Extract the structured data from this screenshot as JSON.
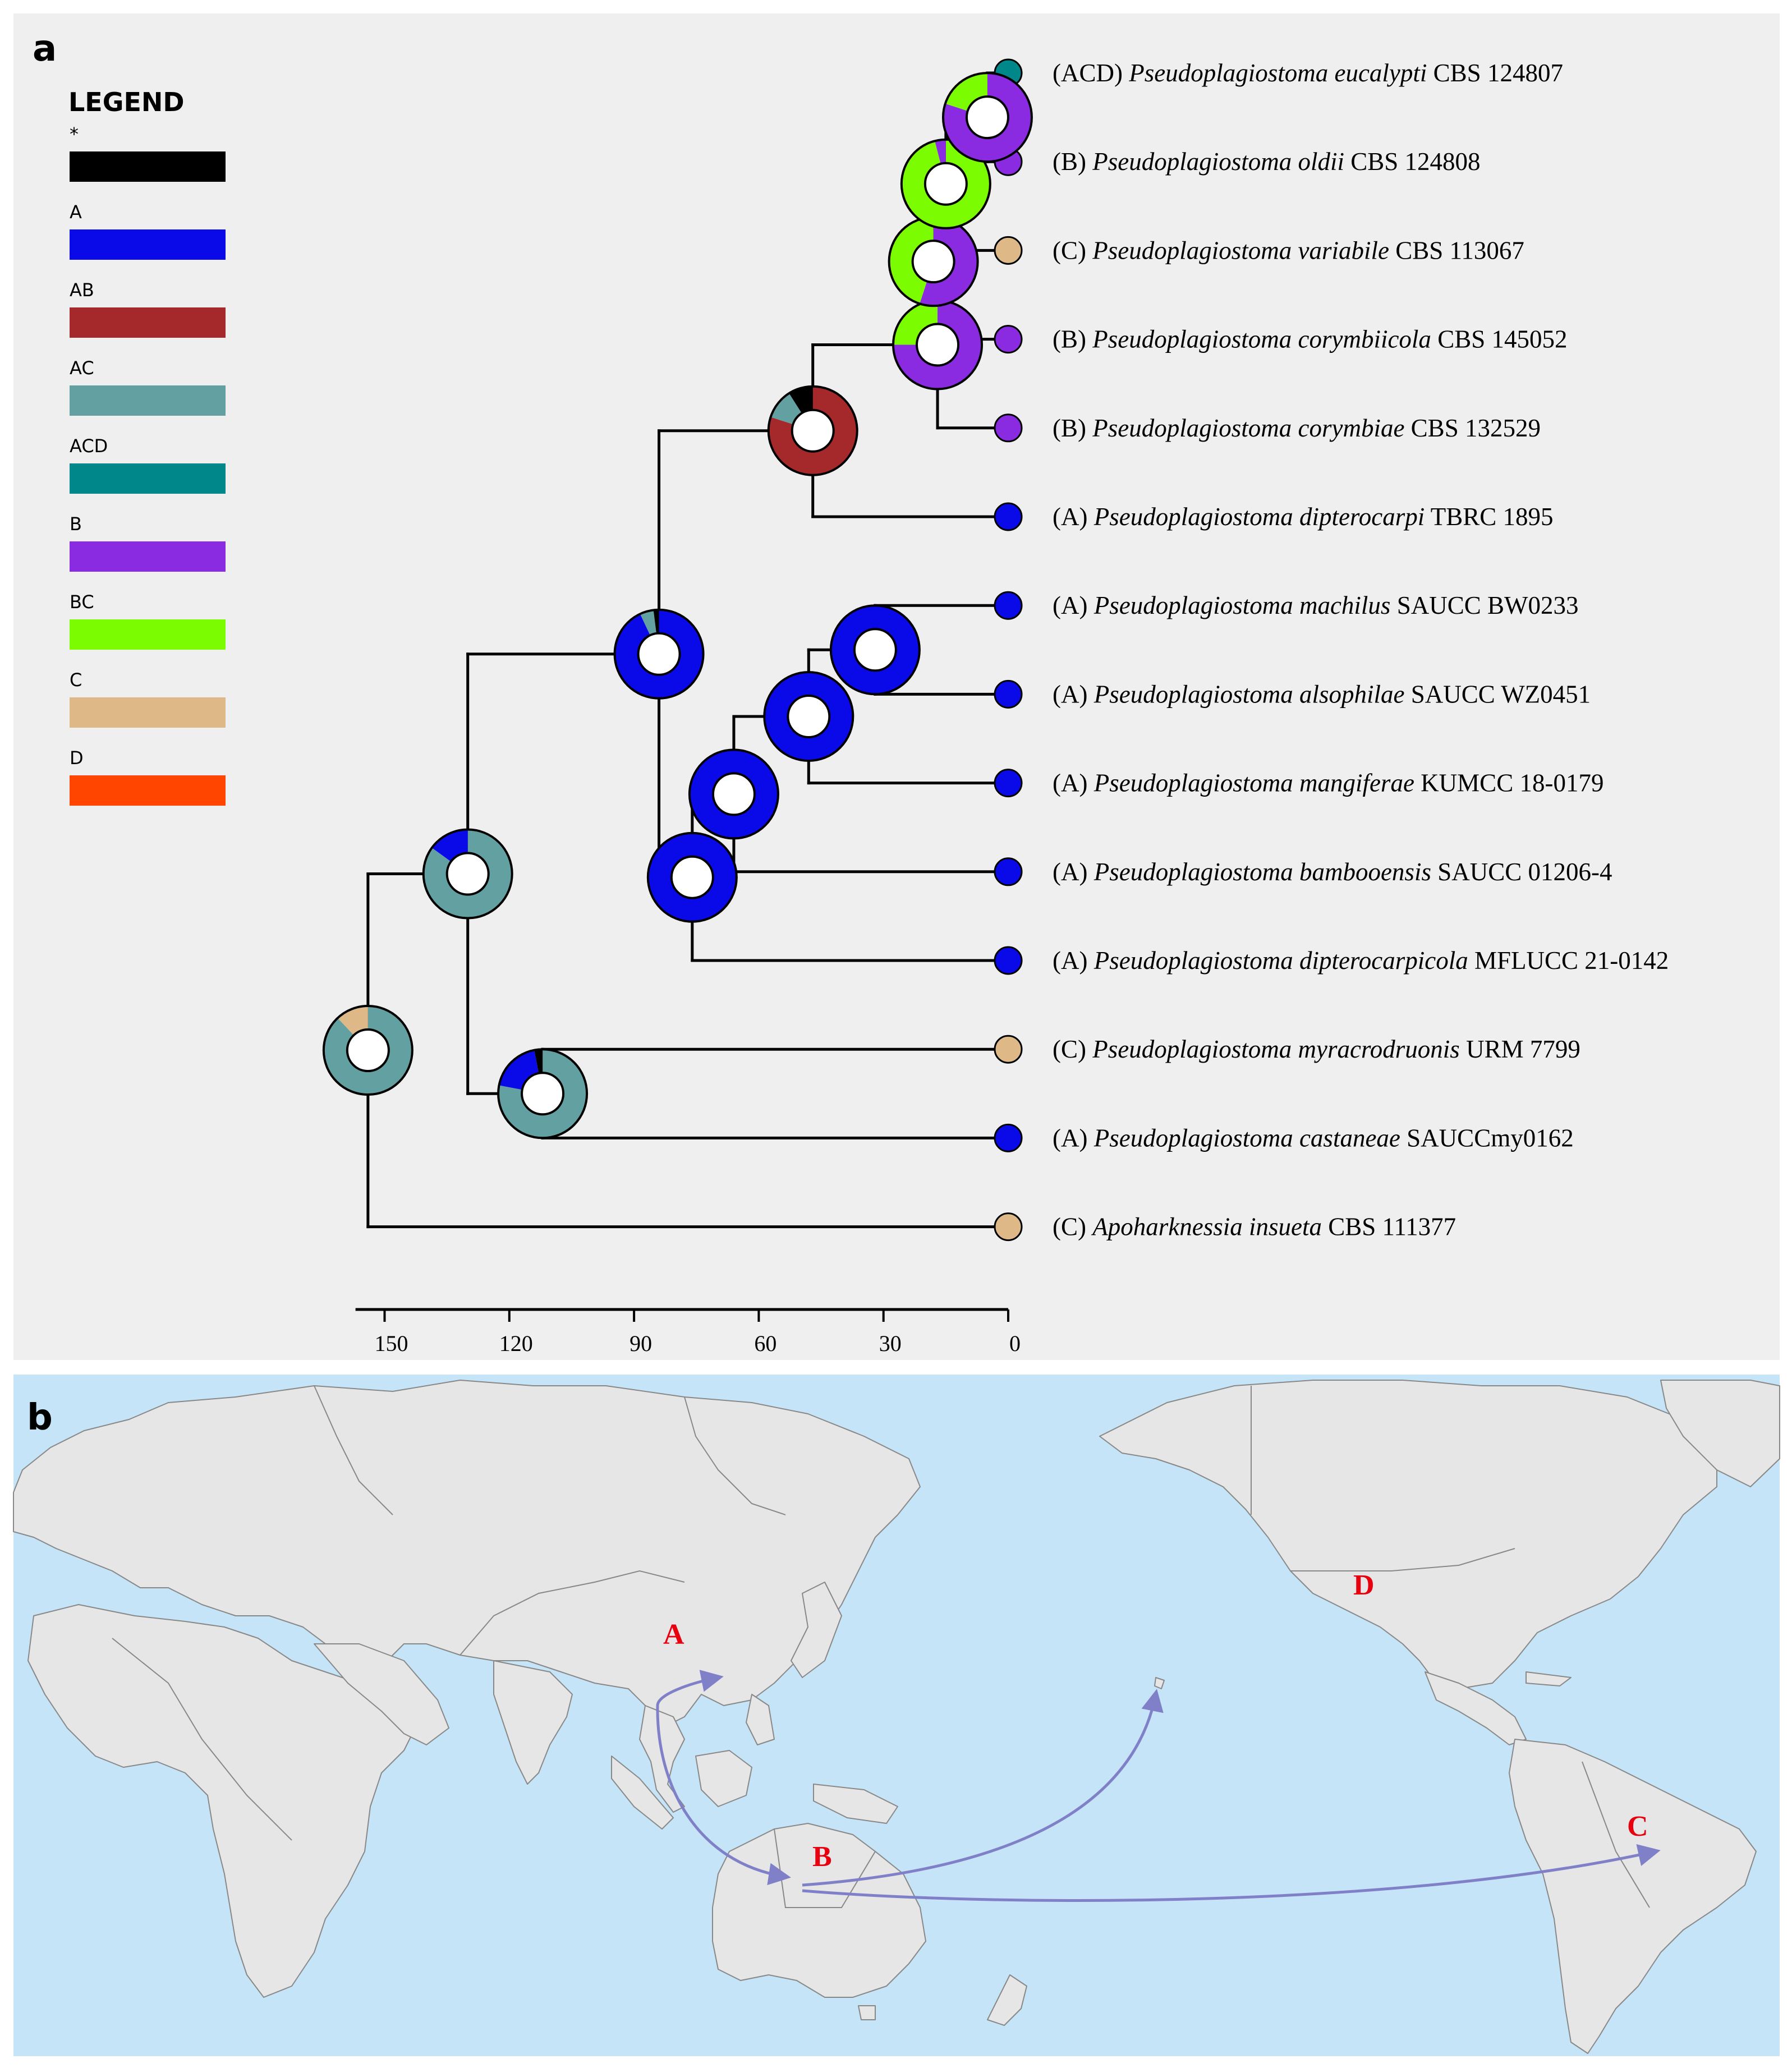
{
  "panels": {
    "a": "a",
    "b": "b"
  },
  "legend": {
    "title": "LEGEND",
    "items": [
      {
        "label": "*",
        "color": "#000000"
      },
      {
        "label": "A",
        "color": "#0a0ae8"
      },
      {
        "label": "AB",
        "color": "#a5282b"
      },
      {
        "label": "AC",
        "color": "#63a0a2"
      },
      {
        "label": "ACD",
        "color": "#00878a"
      },
      {
        "label": "B",
        "color": "#8a2be2"
      },
      {
        "label": "BC",
        "color": "#7cfc00"
      },
      {
        "label": "C",
        "color": "#deb887"
      },
      {
        "label": "D",
        "color": "#ff4500"
      }
    ]
  },
  "taxa": [
    {
      "area": "(ACD)",
      "name": "Pseudoplagiostoma eucalypti",
      "strain": "CBS 124807",
      "tip_color": "ACD"
    },
    {
      "area": "(B)",
      "name": "Pseudoplagiostoma oldii",
      "strain": "CBS 124808",
      "tip_color": "B"
    },
    {
      "area": "(C)",
      "name": "Pseudoplagiostoma variabile",
      "strain": "CBS 113067",
      "tip_color": "C"
    },
    {
      "area": "(B)",
      "name": "Pseudoplagiostoma corymbiicola",
      "strain": "CBS 145052",
      "tip_color": "B"
    },
    {
      "area": "(B)",
      "name": "Pseudoplagiostoma corymbiae",
      "strain": "CBS 132529",
      "tip_color": "B"
    },
    {
      "area": "(A)",
      "name": "Pseudoplagiostoma dipterocarpi",
      "strain": "TBRC 1895",
      "tip_color": "A"
    },
    {
      "area": "(A)",
      "name": "Pseudoplagiostoma machilus",
      "strain": "SAUCC BW0233",
      "tip_color": "A"
    },
    {
      "area": "(A)",
      "name": "Pseudoplagiostoma alsophilae",
      "strain": "SAUCC WZ0451",
      "tip_color": "A"
    },
    {
      "area": "(A)",
      "name": "Pseudoplagiostoma mangiferae",
      "strain": "KUMCC 18-0179",
      "tip_color": "A"
    },
    {
      "area": "(A)",
      "name": "Pseudoplagiostoma bambooensis",
      "strain": "SAUCC 01206-4",
      "tip_color": "A"
    },
    {
      "area": "(A)",
      "name": "Pseudoplagiostoma dipterocarpicola",
      "strain": "MFLUCC 21-0142",
      "tip_color": "A"
    },
    {
      "area": "(C)",
      "name": "Pseudoplagiostoma myracrodruonis",
      "strain": "URM 7799",
      "tip_color": "C"
    },
    {
      "area": "(A)",
      "name": "Pseudoplagiostoma castaneae",
      "strain": "SAUCCmy0162",
      "tip_color": "A"
    },
    {
      "area": "(C)",
      "name": "Apoharknessia insueta",
      "strain": "CBS 111377",
      "tip_color": "C"
    }
  ],
  "nodes": [
    {
      "id": "root",
      "age": 154,
      "pie": [
        [
          "AC",
          0.88
        ],
        [
          "C",
          0.12
        ]
      ]
    },
    {
      "id": "n1",
      "age": 130,
      "pie": [
        [
          "AC",
          0.85
        ],
        [
          "A",
          0.15
        ]
      ]
    },
    {
      "id": "n2",
      "age": 112,
      "pie": [
        [
          "AC",
          0.78
        ],
        [
          "A",
          0.19
        ],
        [
          "*",
          0.03
        ]
      ]
    },
    {
      "id": "n3",
      "age": 84,
      "pie": [
        [
          "A",
          0.93
        ],
        [
          "AC",
          0.05
        ],
        [
          "*",
          0.02
        ]
      ]
    },
    {
      "id": "n4",
      "age": 47,
      "pie": [
        [
          "AB",
          0.8
        ],
        [
          "AC",
          0.11
        ],
        [
          "*",
          0.09
        ]
      ]
    },
    {
      "id": "n5",
      "age": 17,
      "pie": [
        [
          "B",
          0.75
        ],
        [
          "BC",
          0.25
        ]
      ]
    },
    {
      "id": "n6",
      "age": 18,
      "pie": [
        [
          "B",
          0.55
        ],
        [
          "BC",
          0.45
        ]
      ]
    },
    {
      "id": "n7",
      "age": 15,
      "pie": [
        [
          "BC",
          0.96
        ],
        [
          "B",
          0.04
        ]
      ]
    },
    {
      "id": "n8",
      "age": 5,
      "pie": [
        [
          "B",
          0.8
        ],
        [
          "BC",
          0.2
        ]
      ]
    },
    {
      "id": "n9",
      "age": 76,
      "pie": [
        [
          "A",
          1.0
        ]
      ]
    },
    {
      "id": "n10",
      "age": 66,
      "pie": [
        [
          "A",
          1.0
        ]
      ]
    },
    {
      "id": "n11",
      "age": 48,
      "pie": [
        [
          "A",
          1.0
        ]
      ]
    },
    {
      "id": "n12",
      "age": 32,
      "pie": [
        [
          "A",
          1.0
        ]
      ]
    }
  ],
  "axis": {
    "ticks": [
      150,
      120,
      90,
      60,
      30,
      0
    ],
    "range": [
      157,
      0
    ]
  },
  "map": {
    "areas": [
      {
        "label": "A"
      },
      {
        "label": "B"
      },
      {
        "label": "C"
      },
      {
        "label": "D"
      }
    ],
    "colors": {
      "ocean": "#c6e4f7",
      "land": "#e6e6e6",
      "border": "#888888",
      "arrow": "#8080c8",
      "area_label": "#e8000f"
    }
  }
}
